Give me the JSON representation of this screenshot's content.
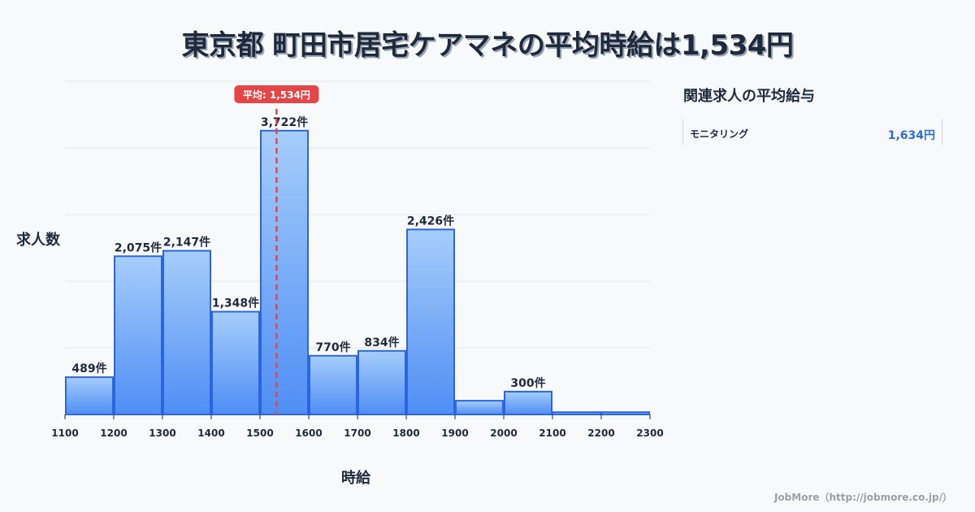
{
  "title": "東京都 町田市居宅ケアマネの平均時給は1,534円",
  "chart_data": {
    "type": "bar",
    "title": "東京都 町田市居宅ケアマネの平均時給は1,534円",
    "xlabel": "時給",
    "ylabel": "求人数",
    "x_ticks": [
      1100,
      1200,
      1300,
      1400,
      1500,
      1600,
      1700,
      1800,
      1900,
      2000,
      2100,
      2200,
      2300
    ],
    "categories": [
      "1100-1200",
      "1200-1300",
      "1300-1400",
      "1400-1500",
      "1500-1600",
      "1600-1700",
      "1700-1800",
      "1800-1900",
      "1900-2000",
      "2000-2100",
      "2100-2200",
      "2200-2300"
    ],
    "values": [
      489,
      2075,
      2147,
      1348,
      3722,
      770,
      834,
      2426,
      180,
      300,
      30,
      30
    ],
    "value_labels": [
      "489件",
      "2,075件",
      "2,147件",
      "1,348件",
      "3,722件",
      "770件",
      "834件",
      "2,426件",
      "",
      "300件",
      "",
      ""
    ],
    "xlim": [
      1100,
      2300
    ],
    "ylim": [
      0,
      4370
    ],
    "grid": true,
    "mean": {
      "value": 1534,
      "label": "平均: 1,534円"
    },
    "colors": {
      "bar_top": "#a6cdfb",
      "bar_bottom": "#4f8ef5",
      "bar_border": "#2b66e0",
      "mean_line": "#e64545",
      "grid": "#e3e6ec"
    }
  },
  "axis": {
    "ylabel": "求人数",
    "xlabel": "時給"
  },
  "sidebar": {
    "title": "関連求人の平均給与",
    "items": [
      {
        "name": "モニタリング",
        "value": "1,634円"
      }
    ]
  },
  "footer": "JobMore（http://jobmore.co.jp/）"
}
